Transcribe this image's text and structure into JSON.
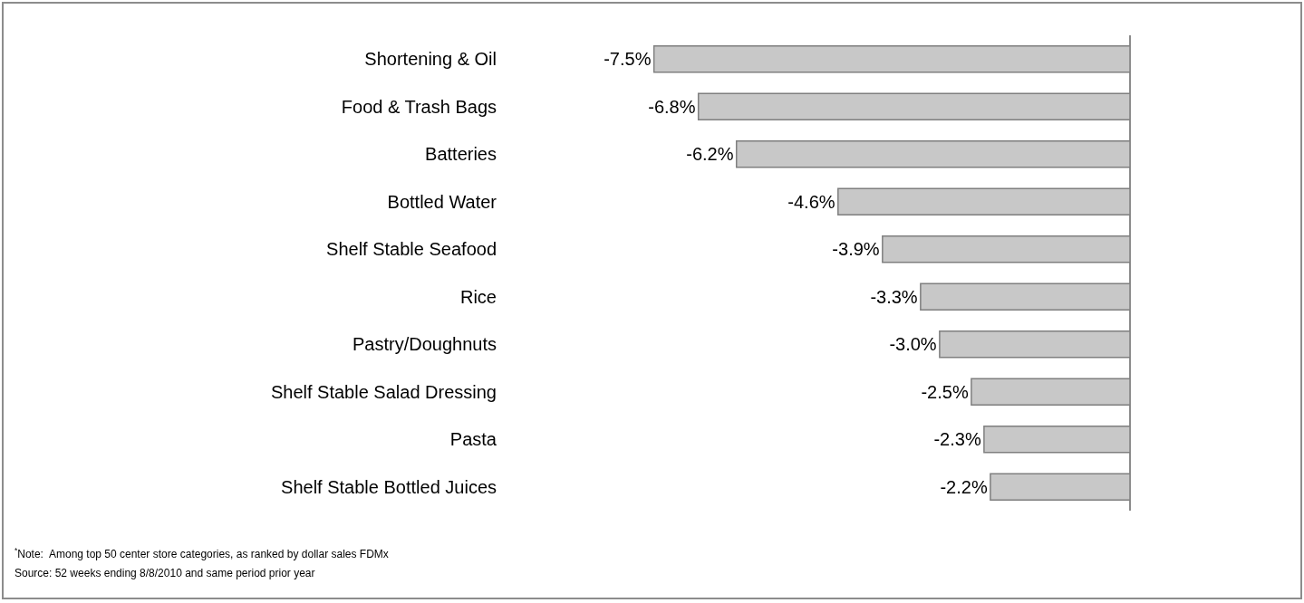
{
  "chart_data": {
    "type": "bar",
    "orientation": "horizontal",
    "categories": [
      "Shortening & Oil",
      "Food & Trash Bags",
      "Batteries",
      "Bottled Water",
      "Shelf Stable Seafood",
      "Rice",
      "Pastry/Doughnuts",
      "Shelf Stable Salad Dressing",
      "Pasta",
      "Shelf Stable Bottled Juices"
    ],
    "values": [
      -7.5,
      -6.8,
      -6.2,
      -4.6,
      -3.9,
      -3.3,
      -3.0,
      -2.5,
      -2.3,
      -2.2
    ],
    "value_labels": [
      "-7.5%",
      "-6.8%",
      "-6.2%",
      "-4.6%",
      "-3.9%",
      "-3.3%",
      "-3.0%",
      "-2.5%",
      "-2.3%",
      "-2.2%"
    ],
    "color": "#c8c8c8",
    "tick_labels": "y",
    "annotations": [
      "$^{*}$Note:  Among top 50 center store categories, as ranked by dollar sales FDMx",
      "Source: 52 weeks ending 8/8/2010 and same period prior year"
    ]
  }
}
